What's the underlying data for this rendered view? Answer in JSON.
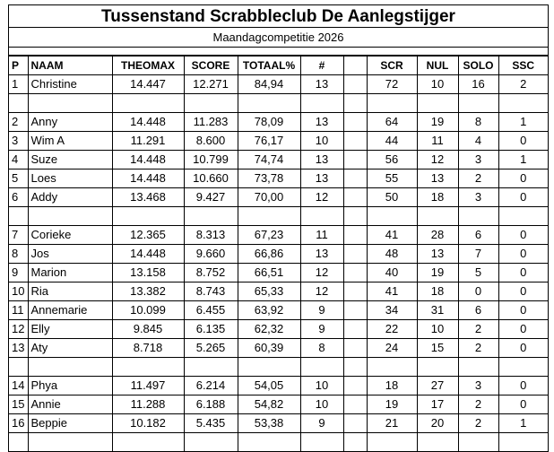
{
  "title": "Tussenstand Scrabbleclub De Aanlegstijger",
  "subtitle": "Maandagcompetitie 2026",
  "headers": {
    "p": "P",
    "naam": "NAAM",
    "theomax": "THEOMAX",
    "score": "SCORE",
    "totaal": "TOTAAL%",
    "count": "#",
    "scr": "SCR",
    "nul": "NUL",
    "solo": "SOLO",
    "ssc": "SSC"
  },
  "groups": [
    [
      {
        "p": "1",
        "naam": "Christine",
        "theomax": "14.447",
        "score": "12.271",
        "totaal": "84,94",
        "count": "13",
        "scr": "72",
        "nul": "10",
        "solo": "16",
        "ssc": "2"
      }
    ],
    [
      {
        "p": "2",
        "naam": "Anny",
        "theomax": "14.448",
        "score": "11.283",
        "totaal": "78,09",
        "count": "13",
        "scr": "64",
        "nul": "19",
        "solo": "8",
        "ssc": "1"
      },
      {
        "p": "3",
        "naam": "Wim A",
        "theomax": "11.291",
        "score": "8.600",
        "totaal": "76,17",
        "count": "10",
        "scr": "44",
        "nul": "11",
        "solo": "4",
        "ssc": "0"
      },
      {
        "p": "4",
        "naam": "Suze",
        "theomax": "14.448",
        "score": "10.799",
        "totaal": "74,74",
        "count": "13",
        "scr": "56",
        "nul": "12",
        "solo": "3",
        "ssc": "1"
      },
      {
        "p": "5",
        "naam": "Loes",
        "theomax": "14.448",
        "score": "10.660",
        "totaal": "73,78",
        "count": "13",
        "scr": "55",
        "nul": "13",
        "solo": "2",
        "ssc": "0"
      },
      {
        "p": "6",
        "naam": "Addy",
        "theomax": "13.468",
        "score": "9.427",
        "totaal": "70,00",
        "count": "12",
        "scr": "50",
        "nul": "18",
        "solo": "3",
        "ssc": "0"
      }
    ],
    [
      {
        "p": "7",
        "naam": "Corieke",
        "theomax": "12.365",
        "score": "8.313",
        "totaal": "67,23",
        "count": "11",
        "scr": "41",
        "nul": "28",
        "solo": "6",
        "ssc": "0"
      },
      {
        "p": "8",
        "naam": "Jos",
        "theomax": "14.448",
        "score": "9.660",
        "totaal": "66,86",
        "count": "13",
        "scr": "48",
        "nul": "13",
        "solo": "7",
        "ssc": "0"
      },
      {
        "p": "9",
        "naam": "Marion",
        "theomax": "13.158",
        "score": "8.752",
        "totaal": "66,51",
        "count": "12",
        "scr": "40",
        "nul": "19",
        "solo": "5",
        "ssc": "0"
      },
      {
        "p": "10",
        "naam": "Ria",
        "theomax": "13.382",
        "score": "8.743",
        "totaal": "65,33",
        "count": "12",
        "scr": "41",
        "nul": "18",
        "solo": "0",
        "ssc": "0"
      },
      {
        "p": "11",
        "naam": "Annemarie",
        "theomax": "10.099",
        "score": "6.455",
        "totaal": "63,92",
        "count": "9",
        "scr": "34",
        "nul": "31",
        "solo": "6",
        "ssc": "0"
      },
      {
        "p": "12",
        "naam": "Elly",
        "theomax": "9.845",
        "score": "6.135",
        "totaal": "62,32",
        "count": "9",
        "scr": "22",
        "nul": "10",
        "solo": "2",
        "ssc": "0"
      },
      {
        "p": "13",
        "naam": "Aty",
        "theomax": "8.718",
        "score": "5.265",
        "totaal": "60,39",
        "count": "8",
        "scr": "24",
        "nul": "15",
        "solo": "2",
        "ssc": "0"
      }
    ],
    [
      {
        "p": "14",
        "naam": "Phya",
        "theomax": "11.497",
        "score": "6.214",
        "totaal": "54,05",
        "count": "10",
        "scr": "18",
        "nul": "27",
        "solo": "3",
        "ssc": "0"
      },
      {
        "p": "15",
        "naam": "Annie",
        "theomax": "11.288",
        "score": "6.188",
        "totaal": "54,82",
        "count": "10",
        "scr": "19",
        "nul": "17",
        "solo": "2",
        "ssc": "0"
      },
      {
        "p": "16",
        "naam": "Beppie",
        "theomax": "10.182",
        "score": "5.435",
        "totaal": "53,38",
        "count": "9",
        "scr": "21",
        "nul": "20",
        "solo": "2",
        "ssc": "1"
      }
    ]
  ]
}
